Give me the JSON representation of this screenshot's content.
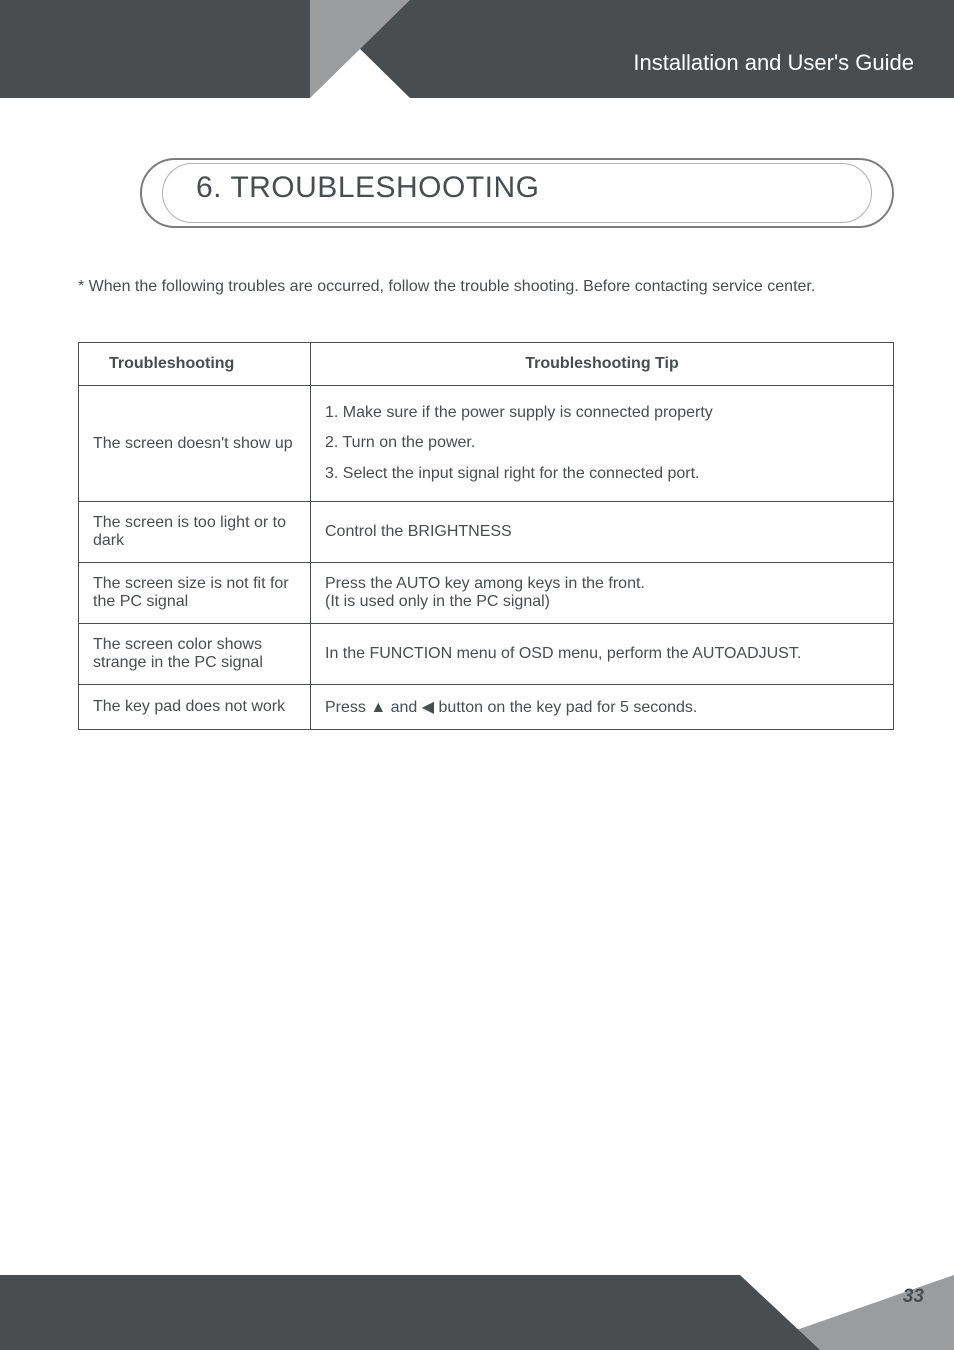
{
  "header": {
    "title": "Installation and User's Guide"
  },
  "section": {
    "heading": "6. TROUBLESHOOTING"
  },
  "intro": "* When the following troubles are occurred, follow the trouble shooting. Before contacting service center.",
  "table": {
    "col1_header": "Troubleshooting",
    "col2_header": "Troubleshooting Tip",
    "rows": [
      {
        "problem": "The screen doesn't show up",
        "tip": "1. Make sure if the power supply is connected property\n2. Turn on the power.\n3. Select the input signal right for the connected port."
      },
      {
        "problem": "The screen is too light or to dark",
        "tip": "Control the BRIGHTNESS"
      },
      {
        "problem": "The screen size is not fit for the PC signal",
        "tip": "Press the AUTO key among keys in the front.\n(It is used only in the PC signal)"
      },
      {
        "problem": "The screen color shows strange in the PC signal",
        "tip": "In the FUNCTION menu of OSD menu, perform the AUTOADJUST."
      },
      {
        "problem": "The key pad does not work",
        "tip": "Press  ▲ and ◀  button on the key pad for 5 seconds."
      }
    ]
  },
  "footer": {
    "page": "33"
  },
  "colors": {
    "dark": "#4a4d50",
    "mid": "#9a9c9e",
    "line": "#7a7c7e"
  }
}
